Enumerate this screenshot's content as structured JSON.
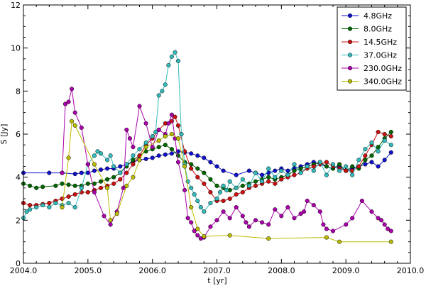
{
  "chart_data": {
    "type": "line",
    "xlabel": "t [yr]",
    "ylabel": "S [Jy]",
    "xlim": [
      2004.0,
      2010.0
    ],
    "ylim": [
      0,
      12
    ],
    "xticks": [
      "2004.0",
      "2005.0",
      "2006.0",
      "2007.0",
      "2008.0",
      "2009.0",
      "2010.0"
    ],
    "yticks": [
      "0",
      "2",
      "4",
      "6",
      "8",
      "10",
      "12"
    ],
    "legend_position": "top-right",
    "grid": false,
    "series": [
      {
        "name": "4.8GHz",
        "color": "#1010cc",
        "x": [
          2004.0,
          2004.4,
          2004.6,
          2004.8,
          2004.9,
          2005.0,
          2005.1,
          2005.2,
          2005.3,
          2005.4,
          2005.5,
          2005.6,
          2005.7,
          2005.8,
          2005.9,
          2006.0,
          2006.1,
          2006.2,
          2006.3,
          2006.4,
          2006.5,
          2006.6,
          2006.7,
          2006.8,
          2006.9,
          2007.0,
          2007.1,
          2007.3,
          2007.5,
          2007.6,
          2007.7,
          2007.8,
          2007.9,
          2008.0,
          2008.1,
          2008.2,
          2008.3,
          2008.4,
          2008.5,
          2008.6,
          2008.7,
          2008.8,
          2008.9,
          2009.0,
          2009.1,
          2009.2,
          2009.3,
          2009.4,
          2009.5,
          2009.6,
          2009.7
        ],
        "y": [
          4.2,
          4.2,
          4.2,
          4.15,
          4.2,
          4.2,
          4.3,
          4.35,
          4.4,
          4.4,
          4.5,
          4.6,
          4.7,
          4.8,
          4.85,
          4.9,
          5.0,
          5.05,
          5.1,
          5.2,
          5.15,
          5.1,
          5.0,
          4.9,
          4.7,
          4.5,
          4.3,
          4.1,
          4.3,
          4.2,
          4.1,
          4.2,
          4.3,
          4.4,
          4.3,
          4.4,
          4.5,
          4.6,
          4.7,
          4.6,
          4.5,
          4.4,
          4.5,
          4.3,
          4.4,
          4.5,
          4.6,
          4.7,
          4.5,
          4.8,
          5.15
        ]
      },
      {
        "name": "8.0GHz",
        "color": "#006600",
        "x": [
          2004.0,
          2004.1,
          2004.2,
          2004.3,
          2004.5,
          2004.6,
          2004.7,
          2004.8,
          2004.9,
          2005.0,
          2005.1,
          2005.2,
          2005.3,
          2005.4,
          2005.5,
          2005.6,
          2005.7,
          2005.8,
          2005.9,
          2006.0,
          2006.1,
          2006.2,
          2006.3,
          2006.4,
          2006.5,
          2006.6,
          2006.7,
          2006.8,
          2006.9,
          2007.0,
          2007.1,
          2007.2,
          2007.3,
          2007.4,
          2007.5,
          2007.6,
          2007.7,
          2007.8,
          2007.9,
          2008.0,
          2008.1,
          2008.2,
          2008.3,
          2008.4,
          2008.5,
          2008.6,
          2008.7,
          2008.8,
          2008.9,
          2009.0,
          2009.1,
          2009.2,
          2009.3,
          2009.4,
          2009.5,
          2009.6,
          2009.7
        ],
        "y": [
          3.7,
          3.6,
          3.5,
          3.55,
          3.6,
          3.7,
          3.65,
          3.6,
          3.6,
          3.7,
          3.7,
          3.8,
          3.9,
          4.0,
          4.2,
          4.5,
          4.8,
          5.0,
          5.2,
          5.3,
          5.4,
          5.5,
          5.3,
          5.0,
          4.7,
          4.6,
          4.4,
          4.2,
          3.9,
          3.6,
          3.5,
          3.4,
          3.5,
          3.6,
          3.7,
          3.8,
          3.9,
          4.0,
          3.9,
          4.0,
          4.1,
          4.3,
          4.4,
          4.5,
          4.6,
          4.7,
          4.5,
          4.4,
          4.6,
          4.3,
          4.5,
          4.4,
          4.8,
          5.0,
          5.4,
          5.8,
          6.1
        ]
      },
      {
        "name": "14.5GHz",
        "color": "#cc1010",
        "x": [
          2004.0,
          2004.1,
          2004.2,
          2004.3,
          2004.4,
          2004.5,
          2004.6,
          2004.7,
          2004.8,
          2004.9,
          2005.0,
          2005.1,
          2005.2,
          2005.3,
          2005.4,
          2005.5,
          2005.6,
          2005.7,
          2005.8,
          2005.9,
          2006.0,
          2006.1,
          2006.2,
          2006.3,
          2006.35,
          2006.4,
          2006.5,
          2006.6,
          2006.7,
          2006.8,
          2006.9,
          2007.0,
          2007.1,
          2007.2,
          2007.3,
          2007.4,
          2007.5,
          2007.6,
          2007.7,
          2007.8,
          2007.9,
          2008.0,
          2008.1,
          2008.2,
          2008.3,
          2008.4,
          2008.5,
          2008.6,
          2008.7,
          2008.8,
          2008.9,
          2009.0,
          2009.1,
          2009.2,
          2009.3,
          2009.4,
          2009.5,
          2009.6,
          2009.7
        ],
        "y": [
          2.8,
          2.7,
          2.7,
          2.75,
          2.8,
          2.9,
          3.0,
          3.1,
          3.2,
          3.3,
          3.3,
          3.4,
          3.5,
          3.6,
          3.7,
          3.9,
          4.2,
          4.6,
          5.0,
          5.5,
          5.8,
          6.2,
          6.5,
          6.6,
          6.8,
          6.4,
          5.2,
          4.4,
          4.0,
          3.7,
          3.3,
          2.9,
          2.9,
          3.0,
          3.2,
          3.3,
          3.5,
          3.6,
          3.7,
          3.8,
          3.7,
          3.9,
          4.0,
          4.1,
          4.2,
          4.4,
          4.5,
          4.6,
          4.7,
          4.5,
          4.4,
          4.3,
          4.3,
          4.5,
          5.0,
          5.5,
          6.1,
          6.0,
          5.9
        ]
      },
      {
        "name": "37.0GHz",
        "color": "#33bbbb",
        "x": [
          2004.0,
          2004.05,
          2004.1,
          2004.2,
          2004.3,
          2004.4,
          2004.5,
          2004.6,
          2004.7,
          2004.8,
          2004.9,
          2005.0,
          2005.1,
          2005.15,
          2005.2,
          2005.3,
          2005.35,
          2005.4,
          2005.5,
          2005.6,
          2005.7,
          2005.8,
          2005.9,
          2006.0,
          2006.05,
          2006.1,
          2006.15,
          2006.2,
          2006.25,
          2006.3,
          2006.35,
          2006.4,
          2006.45,
          2006.5,
          2006.55,
          2006.6,
          2006.65,
          2006.7,
          2006.75,
          2006.8,
          2006.9,
          2007.0,
          2007.05,
          2007.1,
          2007.15,
          2007.2,
          2007.3,
          2007.4,
          2007.5,
          2007.6,
          2007.7,
          2007.8,
          2007.9,
          2008.0,
          2008.1,
          2008.2,
          2008.3,
          2008.4,
          2008.5,
          2008.6,
          2008.7,
          2008.8,
          2008.9,
          2009.0,
          2009.1,
          2009.2,
          2009.3,
          2009.4,
          2009.5,
          2009.6,
          2009.7
        ],
        "y": [
          2.1,
          2.4,
          2.5,
          2.6,
          2.7,
          2.6,
          2.8,
          2.7,
          2.8,
          2.6,
          3.5,
          4.6,
          5.0,
          5.2,
          5.1,
          4.8,
          5.0,
          4.5,
          4.2,
          4.6,
          5.0,
          5.3,
          5.6,
          5.9,
          6.1,
          7.8,
          8.0,
          8.3,
          9.2,
          9.6,
          9.8,
          9.4,
          6.0,
          4.6,
          3.8,
          3.5,
          3.2,
          2.9,
          2.6,
          2.4,
          2.8,
          3.0,
          3.3,
          3.6,
          3.4,
          3.8,
          3.5,
          3.9,
          3.6,
          4.2,
          3.8,
          4.4,
          4.0,
          4.3,
          4.1,
          4.6,
          4.2,
          4.5,
          4.3,
          4.7,
          4.1,
          4.6,
          4.3,
          4.5,
          4.1,
          4.8,
          5.3,
          5.6,
          5.2,
          5.7,
          5.5
        ]
      },
      {
        "name": "230.0GHz",
        "color": "#aa00aa",
        "x": [
          2004.6,
          2004.65,
          2004.7,
          2004.75,
          2004.8,
          2004.9,
          2005.0,
          2005.1,
          2005.25,
          2005.35,
          2005.45,
          2005.55,
          2005.6,
          2005.65,
          2005.7,
          2005.8,
          2005.9,
          2006.0,
          2006.1,
          2006.2,
          2006.25,
          2006.3,
          2006.35,
          2006.4,
          2006.5,
          2006.55,
          2006.6,
          2006.65,
          2006.7,
          2006.75,
          2006.8,
          2006.9,
          2007.0,
          2007.1,
          2007.2,
          2007.3,
          2007.4,
          2007.45,
          2007.5,
          2007.6,
          2007.7,
          2007.8,
          2007.9,
          2008.0,
          2008.1,
          2008.2,
          2008.3,
          2008.35,
          2008.4,
          2008.5,
          2008.6,
          2008.65,
          2008.7,
          2008.8,
          2009.0,
          2009.1,
          2009.25,
          2009.4,
          2009.5,
          2009.55,
          2009.6,
          2009.65,
          2009.7
        ],
        "y": [
          4.2,
          7.4,
          7.5,
          8.1,
          7.0,
          6.3,
          4.6,
          3.3,
          2.2,
          1.8,
          2.4,
          3.5,
          6.2,
          5.8,
          5.4,
          7.3,
          6.5,
          5.4,
          6.2,
          6.0,
          6.5,
          6.9,
          5.8,
          4.7,
          3.4,
          2.1,
          1.9,
          1.5,
          1.3,
          1.15,
          1.2,
          1.7,
          2.0,
          2.4,
          2.1,
          2.6,
          2.2,
          1.9,
          1.7,
          2.0,
          1.9,
          1.8,
          2.5,
          2.2,
          2.6,
          2.1,
          2.3,
          2.4,
          2.9,
          2.7,
          2.4,
          1.8,
          1.6,
          1.5,
          1.8,
          2.1,
          2.9,
          2.4,
          2.1,
          2.0,
          1.8,
          1.6,
          1.5
        ]
      },
      {
        "name": "340.0GHz",
        "color": "#bbbb00",
        "x": [
          2004.6,
          2004.7,
          2004.75,
          2004.8,
          2005.1,
          2005.3,
          2005.35,
          2005.45,
          2005.6,
          2005.7,
          2005.8,
          2005.9,
          2006.1,
          2006.2,
          2006.3,
          2006.4,
          2006.5,
          2006.6,
          2006.7,
          2006.8,
          2007.2,
          2007.8,
          2008.7,
          2008.9,
          2009.7
        ],
        "y": [
          2.6,
          4.9,
          6.6,
          6.4,
          4.6,
          3.5,
          2.0,
          2.3,
          3.6,
          4.0,
          4.8,
          5.4,
          5.7,
          5.9,
          6.0,
          5.8,
          4.5,
          2.6,
          1.6,
          1.25,
          1.3,
          1.15,
          1.2,
          1.0,
          1.0
        ]
      }
    ]
  }
}
